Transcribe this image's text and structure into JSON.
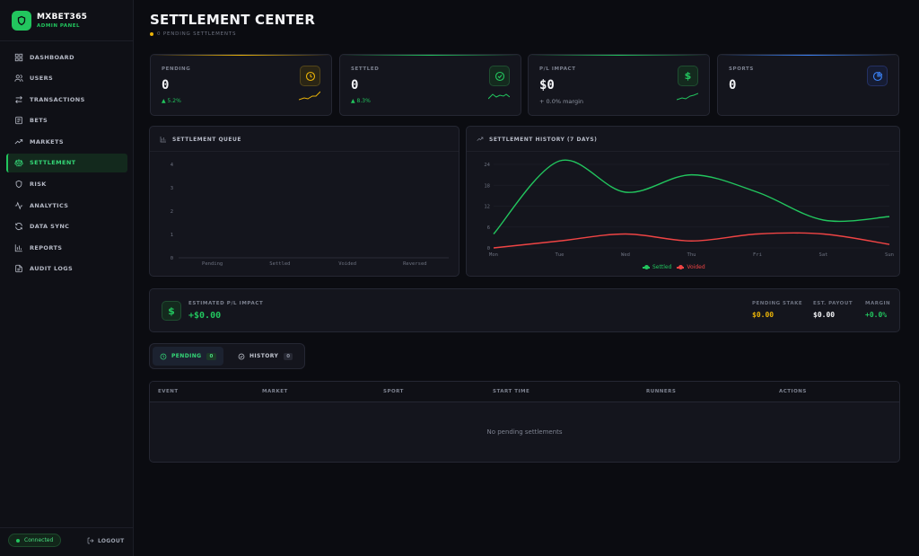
{
  "brand": {
    "name": "MXBET365",
    "subtitle": "ADMIN PANEL"
  },
  "nav": [
    {
      "label": "DASHBOARD",
      "icon": "grid-icon",
      "active": false
    },
    {
      "label": "USERS",
      "icon": "users-icon",
      "active": false
    },
    {
      "label": "TRANSACTIONS",
      "icon": "arrows-icon",
      "active": false
    },
    {
      "label": "BETS",
      "icon": "receipt-icon",
      "active": false
    },
    {
      "label": "MARKETS",
      "icon": "trending-icon",
      "active": false
    },
    {
      "label": "SETTLEMENT",
      "icon": "scale-icon",
      "active": true
    },
    {
      "label": "RISK",
      "icon": "shield-icon",
      "active": false
    },
    {
      "label": "ANALYTICS",
      "icon": "activity-icon",
      "active": false
    },
    {
      "label": "DATA SYNC",
      "icon": "refresh-icon",
      "active": false
    },
    {
      "label": "REPORTS",
      "icon": "bar-chart-icon",
      "active": false
    },
    {
      "label": "AUDIT LOGS",
      "icon": "file-icon",
      "active": false
    }
  ],
  "status": {
    "connected": "Connected",
    "logout": "LOGOUT"
  },
  "header": {
    "title": "SETTLEMENT CENTER",
    "subtitle": "0 PENDING SETTLEMENTS"
  },
  "stats": [
    {
      "label": "PENDING",
      "value": "0",
      "trend": "▲ 5.2%",
      "color": "#eab308"
    },
    {
      "label": "SETTLED",
      "value": "0",
      "trend": "▲ 8.3%",
      "color": "#22c55e"
    },
    {
      "label": "P/L IMPACT",
      "value": "$0",
      "note": "+ 0.0% margin",
      "color": "#22c55e"
    },
    {
      "label": "SPORTS",
      "value": "0",
      "color": "#3b82f6"
    }
  ],
  "queue_chart": {
    "title": "SETTLEMENT QUEUE",
    "chart_data": {
      "type": "bar",
      "categories": [
        "Pending",
        "Settled",
        "Voided",
        "Reversed"
      ],
      "values": [
        0,
        0,
        0,
        0
      ],
      "y_ticks": [
        "0",
        "1",
        "2",
        "3",
        "4"
      ],
      "ylim": [
        0,
        4
      ],
      "title": "SETTLEMENT QUEUE",
      "xlabel": "",
      "ylabel": ""
    }
  },
  "history_chart": {
    "title": "SETTLEMENT HISTORY (7 DAYS)",
    "chart_data": {
      "type": "line",
      "x": [
        "Mon",
        "Tue",
        "Wed",
        "Thu",
        "Fri",
        "Sat",
        "Sun"
      ],
      "series": [
        {
          "name": "Settled",
          "color": "#22c55e",
          "values": [
            4,
            25,
            16,
            21,
            16,
            8,
            9
          ]
        },
        {
          "name": "Voided",
          "color": "#ef4444",
          "values": [
            0,
            2,
            4,
            2,
            4,
            4,
            1
          ]
        }
      ],
      "y_ticks": [
        "0",
        "6",
        "12",
        "18",
        "24"
      ],
      "ylim": [
        0,
        24
      ],
      "title": "SETTLEMENT HISTORY (7 DAYS)",
      "xlabel": "",
      "ylabel": "",
      "legend": "bottom-center"
    }
  },
  "impact": {
    "label": "ESTIMATED P/L IMPACT",
    "value": "+$0.00",
    "stats": [
      {
        "label": "PENDING STAKE",
        "value": "$0.00",
        "color": "#eab308"
      },
      {
        "label": "EST. PAYOUT",
        "value": "$0.00",
        "color": "#f3f4f7"
      },
      {
        "label": "MARGIN",
        "value": "+0.0%",
        "color": "#22c55e"
      }
    ]
  },
  "tabs": [
    {
      "label": "PENDING",
      "count": "0"
    },
    {
      "label": "HISTORY",
      "count": "0"
    }
  ],
  "table": {
    "columns": [
      "EVENT",
      "MARKET",
      "SPORT",
      "START TIME",
      "RUNNERS",
      "ACTIONS"
    ],
    "empty": "No pending settlements"
  }
}
